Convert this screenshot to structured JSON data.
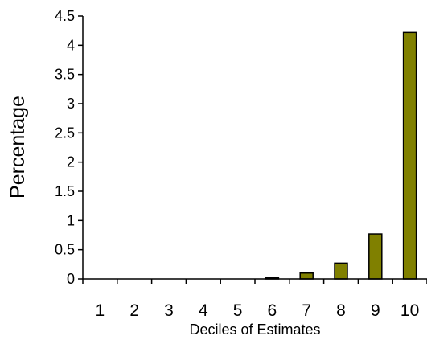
{
  "chart_data": {
    "type": "bar",
    "categories": [
      "1",
      "2",
      "3",
      "4",
      "5",
      "6",
      "7",
      "8",
      "9",
      "10"
    ],
    "values": [
      0,
      0,
      0,
      0,
      0,
      0.02,
      0.1,
      0.27,
      0.77,
      4.22
    ],
    "title": "",
    "xlabel": "Deciles of Estimates",
    "ylabel": "Percentage",
    "ylim": [
      0,
      4.5
    ],
    "yticks": [
      "0",
      "0.5",
      "1",
      "1.5",
      "2",
      "2.5",
      "3",
      "3.5",
      "4",
      "4.5"
    ],
    "grid": false,
    "legend": "none",
    "bar_color": "#808000",
    "bar_edge_color": "#000000"
  }
}
